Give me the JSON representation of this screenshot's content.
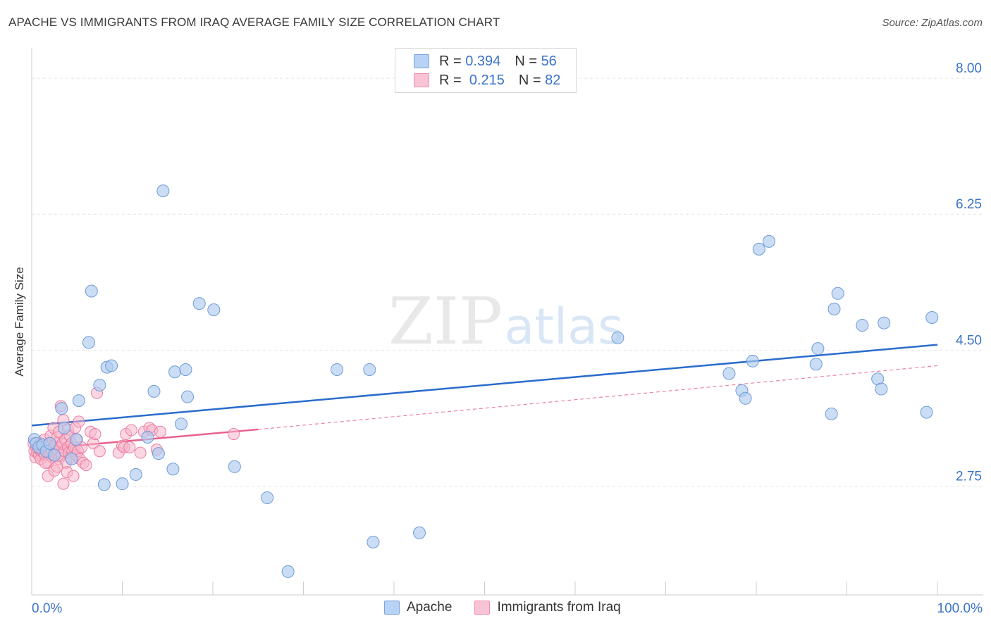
{
  "header": {
    "title": "APACHE VS IMMIGRANTS FROM IRAQ AVERAGE FAMILY SIZE CORRELATION CHART",
    "source": "Source: ZipAtlas.com"
  },
  "legend": {
    "rows": [
      {
        "r_label": "R =",
        "r_value": "0.394",
        "n_label": "N =",
        "n_value": "56"
      },
      {
        "r_label": "R =",
        "r_value": "0.215",
        "n_label": "N =",
        "n_value": "82"
      }
    ],
    "bottom": [
      {
        "label": "Apache"
      },
      {
        "label": "Immigrants from Iraq"
      }
    ]
  },
  "watermark": {
    "zip": "ZIP",
    "atlas": "atlas"
  },
  "colors": {
    "apache_fill": "#aecbf0",
    "apache_stroke": "#6f9bd8",
    "apache_line": "#2a6ccc",
    "iraq_fill": "#f6b6cb",
    "iraq_stroke": "#ec7da1",
    "iraq_line": "#e8608c",
    "axis_text": "#3b73c8",
    "grid": "#e4e4e4"
  },
  "chart_data": {
    "type": "scatter",
    "title": "APACHE VS IMMIGRANTS FROM IRAQ AVERAGE FAMILY SIZE CORRELATION CHART",
    "xlabel": "",
    "ylabel": "Average Family Size",
    "xlim": [
      0,
      100
    ],
    "ylim": [
      1.35,
      8.3
    ],
    "x_tick_labels": [
      "0.0%",
      "100.0%"
    ],
    "y_ticks": [
      2.75,
      4.5,
      6.25,
      8.0
    ],
    "y_tick_labels": [
      "2.75",
      "4.50",
      "6.25",
      "8.00"
    ],
    "grid": true,
    "legend_position": "top-center",
    "series": [
      {
        "name": "Apache",
        "R": 0.394,
        "N": 56,
        "trend": {
          "x": [
            0,
            100
          ],
          "y": [
            3.53,
            4.57
          ]
        },
        "points": [
          [
            0.3,
            3.35
          ],
          [
            0.5,
            3.3
          ],
          [
            0.8,
            3.25
          ],
          [
            1.2,
            3.28
          ],
          [
            1.6,
            3.2
          ],
          [
            2.0,
            3.3
          ],
          [
            2.5,
            3.15
          ],
          [
            3.3,
            3.75
          ],
          [
            3.6,
            3.5
          ],
          [
            4.4,
            3.1
          ],
          [
            4.9,
            3.35
          ],
          [
            5.2,
            3.85
          ],
          [
            6.3,
            4.6
          ],
          [
            6.6,
            5.26
          ],
          [
            7.5,
            4.05
          ],
          [
            8.0,
            2.77
          ],
          [
            8.3,
            4.28
          ],
          [
            8.8,
            4.3
          ],
          [
            10.0,
            2.78
          ],
          [
            11.5,
            2.9
          ],
          [
            12.8,
            3.38
          ],
          [
            14.0,
            3.17
          ],
          [
            13.5,
            3.97
          ],
          [
            14.5,
            6.55
          ],
          [
            15.6,
            2.97
          ],
          [
            15.8,
            4.22
          ],
          [
            16.5,
            3.55
          ],
          [
            17.0,
            4.25
          ],
          [
            17.2,
            3.9
          ],
          [
            18.5,
            5.1
          ],
          [
            20.1,
            5.02
          ],
          [
            22.4,
            3.0
          ],
          [
            26.0,
            2.6
          ],
          [
            28.3,
            1.65
          ],
          [
            33.7,
            4.25
          ],
          [
            37.3,
            4.25
          ],
          [
            37.7,
            2.03
          ],
          [
            42.8,
            2.15
          ],
          [
            64.7,
            4.66
          ],
          [
            77.0,
            4.2
          ],
          [
            78.4,
            3.98
          ],
          [
            78.8,
            3.88
          ],
          [
            79.6,
            4.36
          ],
          [
            80.3,
            5.8
          ],
          [
            81.4,
            5.9
          ],
          [
            86.6,
            4.32
          ],
          [
            86.8,
            4.52
          ],
          [
            88.3,
            3.68
          ],
          [
            88.6,
            5.03
          ],
          [
            89.0,
            5.23
          ],
          [
            91.7,
            4.82
          ],
          [
            93.4,
            4.13
          ],
          [
            93.8,
            4.0
          ],
          [
            94.1,
            4.85
          ],
          [
            98.8,
            3.7
          ],
          [
            99.4,
            4.92
          ]
        ]
      },
      {
        "name": "Immigrants from Iraq",
        "R": 0.215,
        "N": 82,
        "trend": {
          "x": [
            0,
            25
          ],
          "y": [
            3.22,
            3.48
          ]
        },
        "trend_extension": {
          "x": [
            25,
            100
          ],
          "y": [
            3.48,
            4.3
          ]
        },
        "points": [
          [
            0.2,
            3.3
          ],
          [
            0.3,
            3.2
          ],
          [
            0.4,
            3.12
          ],
          [
            0.5,
            3.25
          ],
          [
            0.6,
            3.18
          ],
          [
            0.7,
            3.28
          ],
          [
            0.8,
            3.15
          ],
          [
            0.9,
            3.22
          ],
          [
            1.0,
            3.3
          ],
          [
            1.0,
            3.1
          ],
          [
            1.1,
            3.2
          ],
          [
            1.2,
            3.25
          ],
          [
            1.3,
            3.18
          ],
          [
            1.4,
            3.35
          ],
          [
            1.5,
            3.15
          ],
          [
            1.6,
            3.22
          ],
          [
            1.7,
            3.28
          ],
          [
            1.8,
            3.05
          ],
          [
            1.8,
            2.88
          ],
          [
            1.9,
            3.2
          ],
          [
            2.0,
            3.3
          ],
          [
            2.0,
            3.15
          ],
          [
            2.1,
            3.4
          ],
          [
            2.2,
            3.22
          ],
          [
            2.3,
            3.12
          ],
          [
            2.4,
            3.5
          ],
          [
            2.5,
            3.25
          ],
          [
            2.5,
            2.95
          ],
          [
            2.6,
            3.18
          ],
          [
            2.7,
            3.3
          ],
          [
            2.8,
            3.38
          ],
          [
            2.9,
            3.2
          ],
          [
            3.0,
            3.1
          ],
          [
            3.0,
            3.45
          ],
          [
            3.1,
            3.25
          ],
          [
            3.2,
            3.78
          ],
          [
            3.3,
            3.15
          ],
          [
            3.4,
            3.3
          ],
          [
            3.5,
            2.78
          ],
          [
            3.5,
            3.6
          ],
          [
            3.6,
            3.2
          ],
          [
            3.7,
            3.35
          ],
          [
            3.8,
            3.05
          ],
          [
            3.9,
            2.93
          ],
          [
            4.0,
            3.25
          ],
          [
            4.0,
            3.48
          ],
          [
            4.1,
            3.18
          ],
          [
            4.2,
            3.4
          ],
          [
            4.3,
            3.12
          ],
          [
            4.4,
            3.3
          ],
          [
            4.5,
            3.2
          ],
          [
            4.6,
            2.88
          ],
          [
            4.7,
            3.25
          ],
          [
            4.8,
            3.5
          ],
          [
            4.9,
            3.15
          ],
          [
            5.0,
            3.35
          ],
          [
            5.1,
            3.2
          ],
          [
            5.2,
            3.58
          ],
          [
            5.3,
            3.1
          ],
          [
            5.5,
            3.25
          ],
          [
            5.7,
            3.05
          ],
          [
            6.0,
            3.02
          ],
          [
            6.5,
            3.45
          ],
          [
            6.8,
            3.3
          ],
          [
            7.0,
            3.42
          ],
          [
            7.2,
            3.95
          ],
          [
            7.5,
            3.2
          ],
          [
            9.6,
            3.18
          ],
          [
            10.0,
            3.27
          ],
          [
            10.2,
            3.25
          ],
          [
            10.4,
            3.42
          ],
          [
            10.8,
            3.25
          ],
          [
            11.0,
            3.47
          ],
          [
            12.0,
            3.18
          ],
          [
            12.4,
            3.45
          ],
          [
            13.0,
            3.5
          ],
          [
            13.3,
            3.47
          ],
          [
            13.8,
            3.22
          ],
          [
            14.2,
            3.45
          ],
          [
            22.3,
            3.42
          ],
          [
            1.5,
            3.05
          ],
          [
            2.8,
            3.0
          ]
        ]
      }
    ]
  }
}
